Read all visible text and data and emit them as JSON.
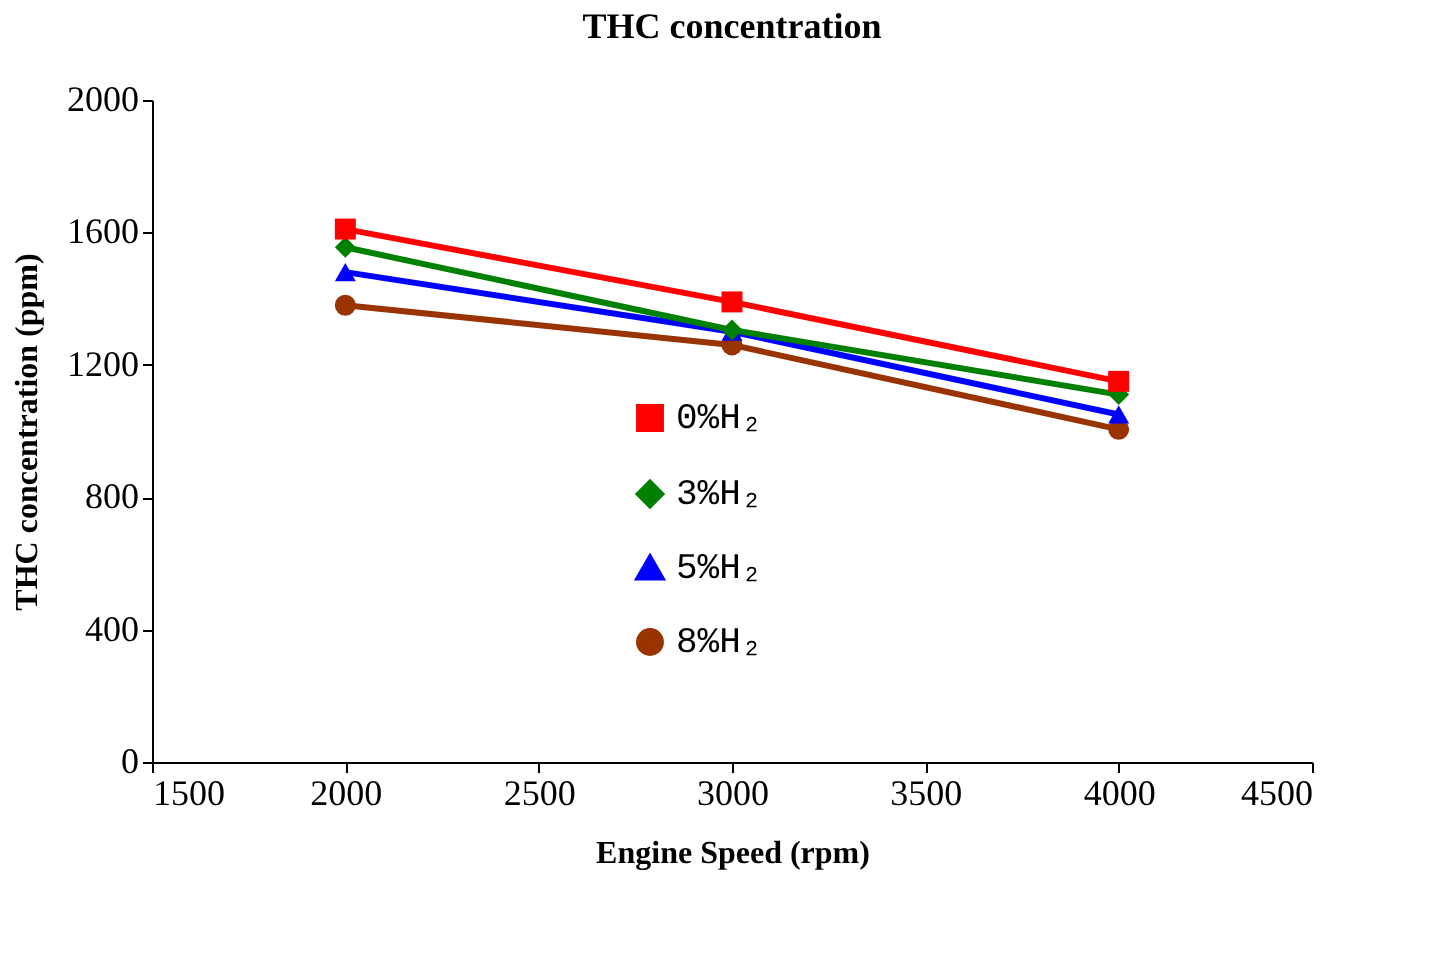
{
  "chart_data": {
    "type": "line",
    "title": "THC concentration",
    "xlabel": "Engine Speed (rpm)",
    "ylabel": "THC concentration (ppm)",
    "x": [
      2000,
      3000,
      4000
    ],
    "series": [
      {
        "name": "0%H₂",
        "color": "#ff0000",
        "marker": "square",
        "values": [
          1610,
          1390,
          1150
        ]
      },
      {
        "name": "3%H₂",
        "color": "#008000",
        "marker": "diamond",
        "values": [
          1555,
          1305,
          1110
        ]
      },
      {
        "name": "5%H₂",
        "color": "#0000ff",
        "marker": "triangle",
        "values": [
          1480,
          1300,
          1050
        ]
      },
      {
        "name": "8%H₂",
        "color": "#993300",
        "marker": "circle",
        "values": [
          1380,
          1260,
          1005
        ]
      }
    ],
    "xlim": [
      1500,
      4500
    ],
    "xticks": [
      1500,
      2000,
      2500,
      3000,
      3500,
      4000,
      4500
    ],
    "ylim": [
      0,
      2000
    ],
    "yticks": [
      0,
      400,
      800,
      1200,
      1600,
      2000
    ],
    "grid": false,
    "legend": "center"
  }
}
